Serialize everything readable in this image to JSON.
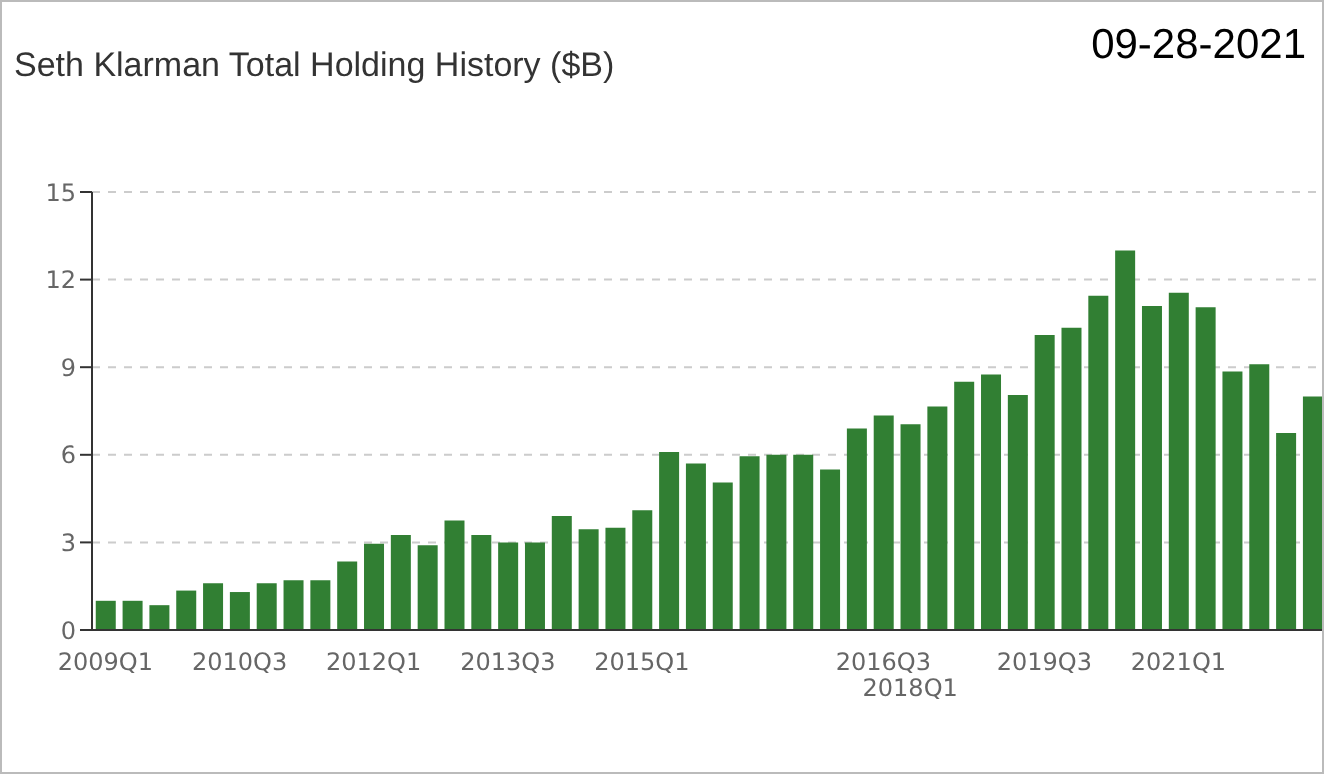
{
  "chart_data": {
    "type": "bar",
    "title": "Seth Klarman Total Holding History ($B)",
    "annotations": [
      "09-28-2021"
    ],
    "categories": [
      "2009Q1",
      null,
      null,
      null,
      null,
      "2010Q3",
      null,
      null,
      null,
      null,
      "2012Q1",
      null,
      null,
      null,
      null,
      "2013Q3",
      null,
      null,
      null,
      null,
      "2015Q1",
      null,
      null,
      null,
      null,
      null,
      null,
      null,
      null,
      "2016Q3",
      "2018Q1",
      null,
      null,
      null,
      null,
      "2019Q3",
      null,
      null,
      null,
      null,
      "2021Q1",
      null,
      null,
      null,
      null,
      null
    ],
    "values": [
      1.0,
      1.0,
      0.85,
      1.35,
      1.6,
      1.3,
      1.6,
      1.7,
      1.7,
      2.35,
      2.95,
      3.25,
      2.9,
      3.75,
      3.25,
      3.0,
      3.0,
      3.9,
      3.45,
      3.5,
      4.1,
      6.1,
      5.7,
      5.05,
      5.95,
      6.0,
      6.0,
      5.5,
      6.9,
      7.35,
      7.05,
      7.65,
      8.5,
      8.75,
      8.05,
      10.1,
      10.35,
      11.45,
      13.0,
      11.1,
      11.55,
      11.05,
      8.85,
      9.1,
      6.75,
      8.0
    ],
    "color": "#317f33",
    "ylim": [
      0,
      15
    ],
    "yticks": [
      0,
      3,
      6,
      9,
      12,
      15
    ],
    "grid": "y",
    "legend": false
  }
}
